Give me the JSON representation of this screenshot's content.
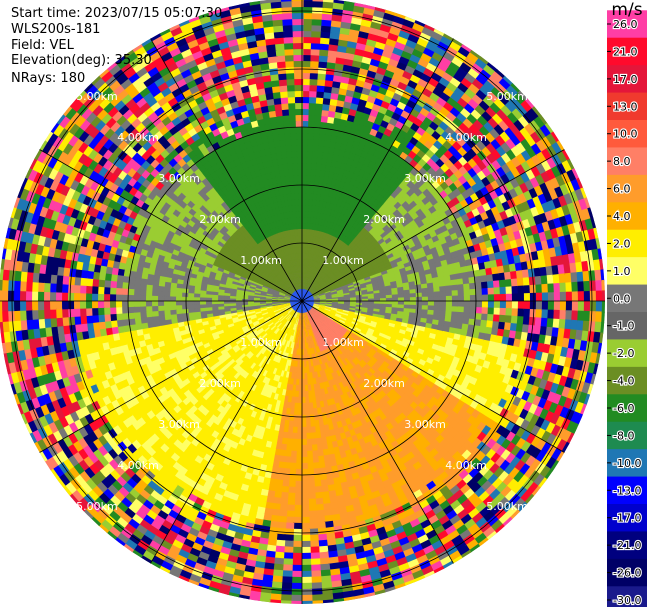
{
  "header": {
    "start_time": "Start time: 2023/07/15 05:07:30",
    "instrument": "WLS200s-181",
    "field": "Field: VEL",
    "elevation": "Elevation(deg): 35.30",
    "nrays": "NRays: 180"
  },
  "range_rings": {
    "labels": [
      "1.00km",
      "2.00km",
      "3.00km",
      "4.00km",
      "5.00km"
    ],
    "distances_km": [
      1,
      2,
      3,
      4,
      5
    ]
  },
  "colorbar": {
    "unit": "m/s",
    "ticks": [
      "26.0",
      "21.0",
      "17.0",
      "13.0",
      "10.0",
      "8.0",
      "6.0",
      "4.0",
      "2.0",
      "1.0",
      "0.0",
      "-1.0",
      "-2.0",
      "-4.0",
      "-6.0",
      "-8.0",
      "-10.0",
      "-13.0",
      "-17.0",
      "-21.0",
      "-26.0",
      "-30.0"
    ],
    "colors": [
      "#ff3ea5",
      "#ff0a2c",
      "#e4163a",
      "#f03a2e",
      "#ff5a3c",
      "#ff7f66",
      "#ff9c2b",
      "#ffb000",
      "#ffee00",
      "#ffff66",
      "#777777",
      "#666666",
      "#9acd32",
      "#6b8e23",
      "#228b22",
      "#1e8b50",
      "#1f77b4",
      "#0000ff",
      "#0000cd",
      "#00007f",
      "#000066",
      "#1a1a8c"
    ]
  }
}
